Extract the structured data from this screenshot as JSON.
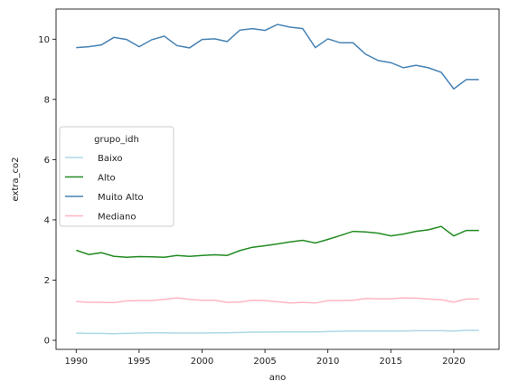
{
  "chart_data": {
    "type": "line",
    "title": "",
    "xlabel": "ano",
    "ylabel": "extra_co2",
    "xlim": [
      1988.4,
      2023.6
    ],
    "ylim": [
      -0.3,
      11.0
    ],
    "x_ticks": [
      1990,
      1995,
      2000,
      2005,
      2010,
      2015,
      2020
    ],
    "y_ticks": [
      0,
      2,
      4,
      6,
      8,
      10
    ],
    "grid": false,
    "legend": {
      "title": "grupo_idh",
      "placement": "center-left"
    },
    "x": [
      1990,
      1991,
      1992,
      1993,
      1994,
      1995,
      1996,
      1997,
      1998,
      1999,
      2000,
      2001,
      2002,
      2003,
      2004,
      2005,
      2006,
      2007,
      2008,
      2009,
      2010,
      2011,
      2012,
      2013,
      2014,
      2015,
      2016,
      2017,
      2018,
      2019,
      2020,
      2021,
      2022
    ],
    "series": [
      {
        "name": "Baixo",
        "color": "#add8e6",
        "values": [
          0.24,
          0.23,
          0.23,
          0.22,
          0.23,
          0.24,
          0.25,
          0.25,
          0.24,
          0.24,
          0.24,
          0.25,
          0.25,
          0.26,
          0.27,
          0.27,
          0.28,
          0.28,
          0.28,
          0.28,
          0.29,
          0.3,
          0.31,
          0.31,
          0.31,
          0.31,
          0.31,
          0.32,
          0.32,
          0.32,
          0.31,
          0.33,
          0.33
        ]
      },
      {
        "name": "Alto",
        "color": "#228b22",
        "values": [
          2.99,
          2.85,
          2.91,
          2.79,
          2.76,
          2.78,
          2.77,
          2.76,
          2.82,
          2.79,
          2.82,
          2.84,
          2.82,
          2.98,
          3.09,
          3.14,
          3.2,
          3.27,
          3.32,
          3.23,
          3.35,
          3.48,
          3.62,
          3.6,
          3.56,
          3.47,
          3.53,
          3.62,
          3.67,
          3.78,
          3.47,
          3.65,
          3.65
        ]
      },
      {
        "name": "Muito Alto",
        "color": "#4682b4",
        "values": [
          9.72,
          9.75,
          9.81,
          10.06,
          9.99,
          9.75,
          9.98,
          10.1,
          9.79,
          9.71,
          9.99,
          10.01,
          9.92,
          10.3,
          10.35,
          10.29,
          10.49,
          10.4,
          10.35,
          9.72,
          10.01,
          9.88,
          9.88,
          9.5,
          9.29,
          9.22,
          9.05,
          9.13,
          9.05,
          8.9,
          8.35,
          8.66,
          8.66
        ]
      },
      {
        "name": "Mediano",
        "color": "#ffb6c1",
        "values": [
          1.29,
          1.26,
          1.26,
          1.25,
          1.31,
          1.32,
          1.32,
          1.36,
          1.41,
          1.36,
          1.33,
          1.33,
          1.26,
          1.27,
          1.33,
          1.32,
          1.28,
          1.24,
          1.26,
          1.24,
          1.32,
          1.32,
          1.33,
          1.39,
          1.38,
          1.38,
          1.41,
          1.4,
          1.37,
          1.35,
          1.27,
          1.37,
          1.37
        ]
      }
    ]
  }
}
